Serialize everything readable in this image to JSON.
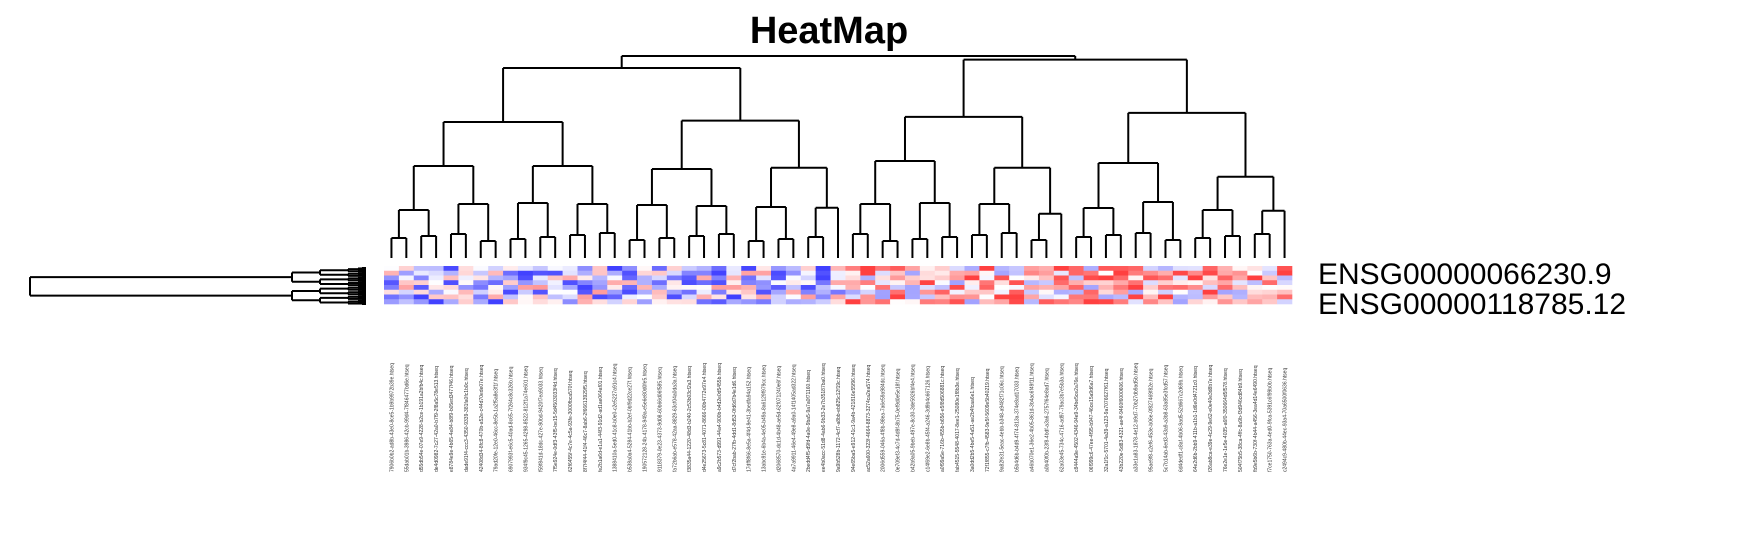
{
  "chart_data": {
    "type": "heatmap",
    "title": "HeatMap",
    "row_labels": [
      "ENSG00000066230.9",
      "ENSG00000118785.12"
    ],
    "column_labels": [
      "7906b0b2-ad8b-43e0-8ce5-1b9b9972b39e.htseq",
      "55dab01b-3986-42cb-99d4-7f846477bd6e.htseq",
      "d55db54e-07e9-4228-b2ce-1b191a2bfb4c.htseq",
      "de4d0982-7c27-42a0-b7f9-2f8a5c78e513.htseq",
      "e8784e9e-4b65-4e84-b8f9-b05ed3477f46.htseq",
      "dade91f4-ccc3-4350-9339-381fa0fc1b0c.htseq",
      "42408d34-8fc8-470b-a52e-c44d70ede07e.htseq",
      "79ad20fe-12e0-46cc-8e5b-1a2f5a8e3f1f.htseq",
      "6907993f-e6c5-40ad-8c65-7f264c8c326b.htseq",
      "934f9c45-1265-4298-8522-812f1a74e601.htseq",
      "f59f841d-18dc-427e-90bd-9420f7ea9033.htseq",
      "7f5e924e-0df3-43f5-be15-5d4503033f4d.htseq",
      "62f6455f-4c7e-4c5a-93fe-3000fbca570f.htseq",
      "8f7f4f44-41f4-46c7-8ab6-2f66613929f5.htseq",
      "fe2b1a6d-e1a1-44f3-91d2-ad1ae064af01.htseq",
      "1388410a-5ed0-41c8-b0e0-c2e5227a91c4.htseq",
      "b538a0a4-5284-41bb-b2ef-0bf9d22ce27f.htseq",
      "190572128-24b-4178-949a-e5e6e80d0fe5.htseq",
      "9118379-0e23-4373-9d08-60b66d06f585.htseq",
      "fa72b6ab-e578-42aa-8829-63cf04a0da3a.htseq",
      "f3835a44-1220-48d3-b240-2c53b03cf2a3.htseq",
      "d4e25673-5c81-4071-8666-00b4772e97e4.htseq",
      "a9c2b573-d991-44a4-900b-b4d2e0d5455b.htseq",
      "d7cf2bab-27fb-4dd1-8d53-0fd6d7b4e1d6.htseq",
      "17dff8f66-8e5a-4f4d-9e41-3bedfa94a152.htseq",
      "13abc91e-6b4a-4e05-b49a-8a6129f979cc.htseq",
      "d2068570-dc1d-4b48-ae5d-62f071240e6f.htseq",
      "4a7a9911-46e4-49e8-a9a0-14f1405ad322.htseq",
      "2bedd4f5-d9fd-4a0e-9ba5-9a7a0f71160.htseq",
      "ee4b0acc-51d8-4ab6-9b33-2e7b35187ba0.htseq",
      "9a9b528b-1172-4cf7-a8bb-eb825c12f19c.htseq",
      "94e65ba5-e912-41c1-9a4b-421816e55f96.htseq",
      "ac52a600-323f-4664-8873-3274ca2ea574.htseq",
      "2006d559-046a-4f8b-98ea-7a6e59a984dc.htseq",
      "0e709ef3-4c7d-4d9f-8b75-0ef9d0e5e18f.htseq",
      "b42b9a05-9beb-497e-8c30-3de5926bf4e4.htseq",
      "c14f69e2-6e8b-45f4-a246-3d9b4c667126.htseq",
      "a0f99a5e-716b-455b-b656-e5f8d506881c.htseq",
      "fab4515-5548-4017-8ee1-25080e1f8b3e.htseq",
      "3a0dd2b5-4be5-4a51-ae2b4fcaa6e1.htseq",
      "72f1f855-c7fb-4583-9e5f-5609e5b40219.htseq",
      "9a82fe31-5eac-4ebb-b348-a9482f71c06c.htseq",
      "b5b4d6b-b4d9-4f74-813a-374e8ad17033.htseq",
      "a46b070e1-36e2-4b05-861d-3b4ac6f49f11.htseq",
      "a0b40f0b-23f8-4bdf-a3a6-2757f64e8ad7.htseq",
      "62a03e45-734c-4716-ad97-79ac3b7e5b3a.htseq",
      "c8444a9e-4502-4346-94e9-34be5ce2a76e.htseq",
      "06f999c6-47ee-4f95-b947-46ce15a9d6a7.htseq",
      "32a1f1c-5701-4a39-a123-9a7076627f61.htseq",
      "43b220e-5d83-4321-ae4f-9460f6000606.htseq",
      "a33e1a83-1878-4e12-b9d7-70b27db9ad5b.htseq",
      "95ae9f8-c2ef6-453e-b06e-0f827469f82e.htseq",
      "5c7b14ab-6ed3-43a9-a3b8-63a85e3fcd57.htseq",
      "6d4dedf1-c8af-4b06-9ad5-52d667c2d69b.htseq",
      "64e2d6b-2bb9-411b-a1b1-1d6e0d4721c0.htseq",
      "f26ab8ca-e39e-4c29-9e62-e0e40e3d8b7e.htseq",
      "76e2e1e-1e5e-4035-a6f0-350664d5f578.htseq",
      "504f75b5-38ca-4ffc-8a9b-f3d946cd84b9.htseq",
      "fb9e5b6b-730f-4b44-a456-3ea4d14e6490.htseq",
      "f7ce1750-763a-4ed0-9fca-5391c6f99b0b.htseq",
      "c2494c9-480b-44ec-93a4-70a6500f0636.htseq"
    ],
    "colorscale": {
      "low": "#4040ff",
      "mid": "#ffffff",
      "high": "#ff4040"
    },
    "legend": "none"
  }
}
